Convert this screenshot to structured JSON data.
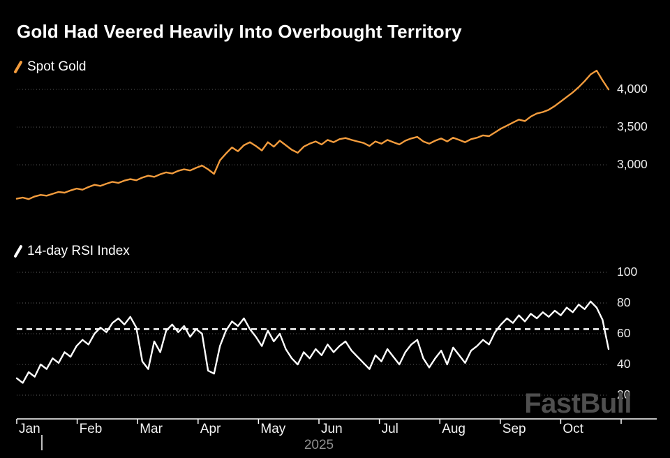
{
  "title": "Gold Had Veered Heavily Into Overbought Territory",
  "branding": {
    "logo_text": "FastBull"
  },
  "x_axis": {
    "months": [
      "Jan",
      "Feb",
      "Mar",
      "Apr",
      "May",
      "Jun",
      "Jul",
      "Aug",
      "Sep",
      "Oct"
    ],
    "year": "2025"
  },
  "colors": {
    "background": "#000000",
    "grid": "#4d4d4d",
    "axis": "#ffffff",
    "tick_label": "#ececec",
    "muted": "#8f8f8f",
    "logo": "#4f4f4f",
    "gold_line": "#f39c3d",
    "rsi_line": "#ffffff"
  },
  "chart_data": [
    {
      "type": "line",
      "name": "Spot Gold",
      "panel": "top",
      "color": "#f39c3d",
      "x_range": [
        "Jan 2025",
        "Oct 2025"
      ],
      "ylim": [
        2130,
        4260
      ],
      "yticks": {
        "values": [
          3000,
          3500,
          4000
        ],
        "labels": [
          "3,000",
          "3,500",
          "4,000"
        ]
      },
      "grid": true,
      "legend_position": "top-left",
      "values": [
        2550,
        2565,
        2545,
        2580,
        2600,
        2590,
        2615,
        2640,
        2630,
        2660,
        2685,
        2670,
        2705,
        2735,
        2720,
        2750,
        2775,
        2760,
        2790,
        2810,
        2795,
        2830,
        2855,
        2840,
        2875,
        2900,
        2885,
        2920,
        2940,
        2925,
        2960,
        2990,
        2940,
        2880,
        3060,
        3150,
        3230,
        3180,
        3260,
        3300,
        3250,
        3190,
        3300,
        3240,
        3320,
        3260,
        3200,
        3160,
        3240,
        3280,
        3310,
        3270,
        3330,
        3300,
        3340,
        3355,
        3330,
        3310,
        3290,
        3250,
        3310,
        3280,
        3330,
        3300,
        3270,
        3320,
        3350,
        3370,
        3310,
        3280,
        3320,
        3350,
        3310,
        3360,
        3330,
        3300,
        3340,
        3360,
        3390,
        3380,
        3430,
        3480,
        3520,
        3560,
        3600,
        3580,
        3640,
        3680,
        3700,
        3730,
        3780,
        3840,
        3900,
        3960,
        4030,
        4110,
        4200,
        4250,
        4120,
        4000
      ]
    },
    {
      "type": "line",
      "name": "14-day RSI Index",
      "panel": "bottom",
      "color": "#ffffff",
      "x_range": [
        "Jan 2025",
        "Oct 2025"
      ],
      "ylim": [
        20,
        100
      ],
      "yticks": {
        "values": [
          20,
          40,
          60,
          80,
          100
        ],
        "labels": [
          "20",
          "40",
          "60",
          "80",
          "100"
        ]
      },
      "grid": true,
      "legend_position": "top-left",
      "overbought_line": {
        "value": 63,
        "style": "dashed",
        "color": "#ffffff"
      },
      "values": [
        31,
        28,
        35,
        32,
        40,
        37,
        44,
        41,
        48,
        45,
        52,
        56,
        53,
        60,
        64,
        61,
        67,
        70,
        66,
        71,
        64,
        42,
        37,
        55,
        48,
        62,
        66,
        61,
        65,
        58,
        63,
        60,
        36,
        34,
        52,
        62,
        68,
        65,
        70,
        63,
        58,
        52,
        62,
        55,
        60,
        50,
        44,
        40,
        48,
        44,
        50,
        46,
        53,
        48,
        52,
        55,
        49,
        45,
        41,
        37,
        46,
        42,
        50,
        45,
        40,
        48,
        53,
        56,
        44,
        38,
        44,
        49,
        40,
        51,
        46,
        41,
        49,
        52,
        56,
        53,
        61,
        66,
        70,
        67,
        72,
        68,
        73,
        70,
        74,
        71,
        75,
        72,
        77,
        74,
        79,
        76,
        81,
        77,
        69,
        50
      ]
    }
  ]
}
